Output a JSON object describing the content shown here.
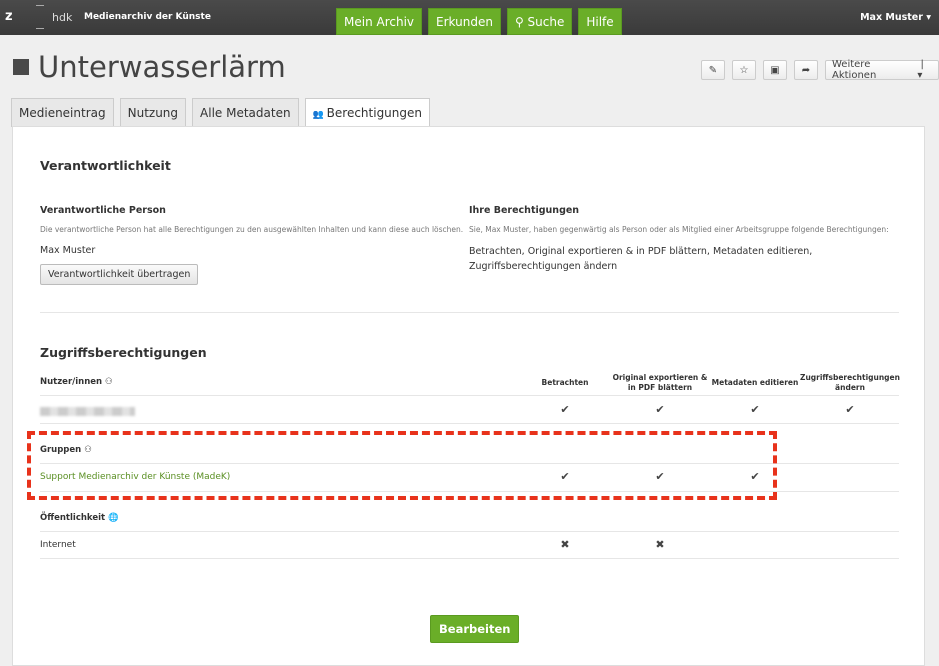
{
  "topbar": {
    "logo": "z",
    "hdk": "hdk",
    "brand": "Medienarchiv der Künste",
    "nav": [
      "Mein Archiv",
      "Erkunden",
      "Suche",
      "Hilfe"
    ],
    "user": "Max Muster ▾"
  },
  "title": "Unterwasserlärm",
  "actions": {
    "more": "Weitere Aktionen"
  },
  "tabs": [
    "Medieneintrag",
    "Nutzung",
    "Alle Metadaten",
    "Berechtigungen"
  ],
  "responsibility": {
    "heading": "Verantwortlichkeit",
    "person_heading": "Verantwortliche Person",
    "person_desc": "Die verantwortliche Person hat alle Berechtigungen zu den ausgewählten Inhalten und kann diese auch löschen.",
    "person": "Max Muster",
    "transfer_button": "Verantwortlichkeit übertragen",
    "yours_heading": "Ihre Berechtigungen",
    "yours_desc": "Sie, Max Muster, haben gegenwärtig als Person oder als Mitglied einer Arbeitsgruppe folgende Berechtigungen:",
    "yours": "Betrachten, Original exportieren & in PDF blättern, Metadaten editieren, Zugriffsberechtigungen ändern"
  },
  "access": {
    "heading": "Zugriffsberechtigungen",
    "columns": [
      "Betrachten",
      "Original exportieren & in PDF blättern",
      "Metadaten editieren",
      "Zugriffsberechtigungen ändern"
    ],
    "users_label": "Nutzer/innen",
    "groups_label": "Gruppen",
    "group": "Support Medienarchiv der Künste (MadeK)",
    "public_label": "Öffentlichkeit",
    "public": "Internet"
  },
  "save_button": "Bearbeiten"
}
